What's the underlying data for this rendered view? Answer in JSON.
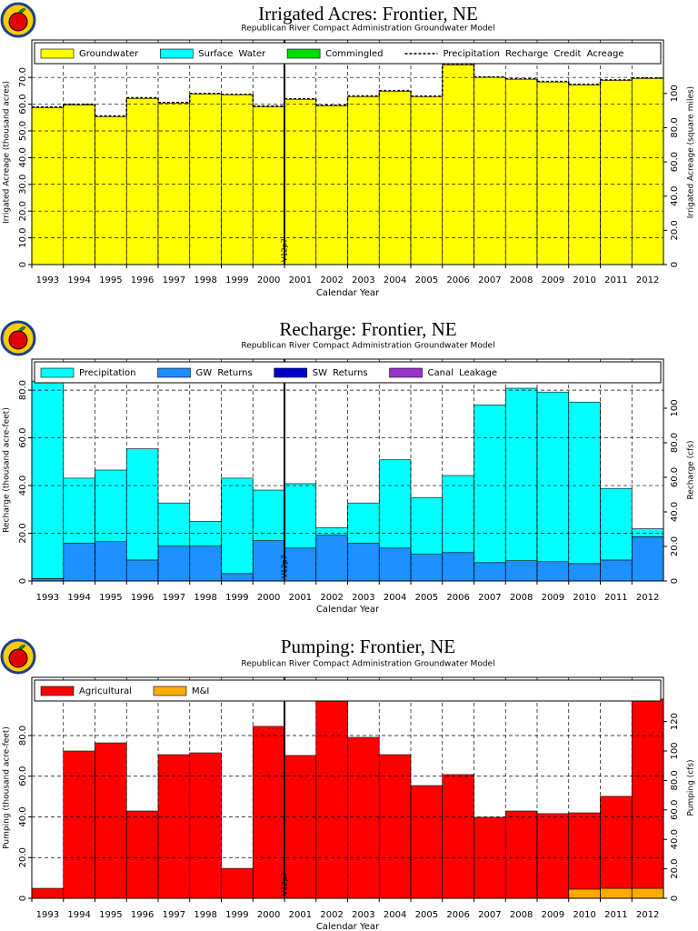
{
  "chart_data": [
    {
      "type": "bar",
      "stacked": true,
      "title": "Irrigated Acres: Frontier, NE",
      "subtitle": "Republican River Compact Administration Groundwater Model",
      "x_label": "Calendar Year",
      "y_label": "Irrigated Acreage (thousand acres)",
      "y2_label": "Irrigated Acreage (square miles)",
      "annotation": "V12p7",
      "categories": [
        "1993",
        "1994",
        "1995",
        "1996",
        "1997",
        "1998",
        "1999",
        "2000",
        "2001",
        "2002",
        "2003",
        "2004",
        "2005",
        "2006",
        "2007",
        "2008",
        "2009",
        "2010",
        "2011",
        "2012"
      ],
      "series": [
        {
          "name": "Groundwater",
          "color": "#ffff00",
          "values": [
            58.7,
            59.7,
            55.3,
            62.1,
            60.4,
            63.8,
            63.5,
            59.0,
            61.8,
            59.4,
            62.8,
            64.8,
            62.8,
            74.7,
            70.0,
            69.3,
            68.3,
            67.2,
            68.9,
            69.6
          ]
        },
        {
          "name": "Surface Water",
          "color": "#00ffff",
          "values": [
            0,
            0,
            0,
            0,
            0,
            0,
            0,
            0,
            0,
            0,
            0,
            0,
            0,
            0,
            0,
            0,
            0,
            0,
            0,
            0
          ]
        },
        {
          "name": "Commingled",
          "color": "#00dd00",
          "values": [
            0,
            0,
            0,
            0,
            0,
            0,
            0,
            0,
            0,
            0,
            0,
            0,
            0,
            0,
            0,
            0,
            0,
            0,
            0,
            0
          ]
        },
        {
          "name": "Precipitation Recharge Credit Acreage",
          "color": "#000000",
          "line_style": "dashed",
          "values": [
            58.9,
            60.0,
            55.6,
            62.4,
            60.6,
            64.0,
            63.7,
            59.3,
            62.0,
            59.6,
            63.1,
            65.1,
            63.0,
            75.0,
            70.2,
            69.5,
            68.5,
            67.4,
            69.1,
            69.8
          ]
        }
      ],
      "ylim": [
        0,
        84
      ],
      "yticks": [
        0,
        {
          "value": 10,
          "label": "10.0"
        },
        {
          "value": 20,
          "label": "20.0"
        },
        {
          "value": 30,
          "label": "30.0"
        },
        {
          "value": 40,
          "label": "40.0"
        },
        {
          "value": 50,
          "label": "50.0"
        },
        {
          "value": 60,
          "label": "60.0"
        },
        {
          "value": 70,
          "label": "70.0"
        }
      ],
      "y2lim": [
        0,
        131.25
      ],
      "y2ticks": [
        0,
        {
          "value": 20,
          "label": "20.0"
        },
        {
          "value": 40,
          "label": "40.0"
        },
        {
          "value": 60,
          "label": "60.0"
        },
        {
          "value": 80,
          "label": "80.0"
        },
        100
      ],
      "grid": true
    },
    {
      "type": "bar",
      "stacked": true,
      "title": "Recharge: Frontier, NE",
      "subtitle": "Republican River Compact Administration Groundwater Model",
      "x_label": "Calendar Year",
      "y_label": "Recharge (thousand acre-feet)",
      "y2_label": "Recharge (cfs)",
      "annotation": "V12p7",
      "categories": [
        "1993",
        "1994",
        "1995",
        "1996",
        "1997",
        "1998",
        "1999",
        "2000",
        "2001",
        "2002",
        "2003",
        "2004",
        "2005",
        "2006",
        "2007",
        "2008",
        "2009",
        "2010",
        "2011",
        "2012"
      ],
      "series": [
        {
          "name": "Precipitation",
          "color": "#00ffff",
          "values": [
            82.8,
            27.3,
            30.0,
            46.6,
            18.1,
            10.4,
            40.0,
            21.2,
            27.0,
            3.1,
            16.9,
            37.0,
            23.8,
            32.3,
            66.1,
            72.3,
            71.1,
            67.7,
            30.0,
            3.4
          ]
        },
        {
          "name": "GW Returns",
          "color": "#1e90ff",
          "values": [
            1.0,
            15.8,
            16.5,
            8.8,
            14.6,
            14.6,
            3.1,
            16.9,
            13.8,
            19.2,
            15.8,
            13.8,
            11.2,
            11.9,
            7.7,
            8.5,
            8.1,
            7.3,
            8.8,
            18.5
          ]
        },
        {
          "name": "SW Returns",
          "color": "#0000cc",
          "values": [
            0,
            0,
            0,
            0,
            0,
            0,
            0,
            0,
            0,
            0,
            0,
            0,
            0,
            0,
            0,
            0,
            0,
            0,
            0,
            0
          ]
        },
        {
          "name": "Canal Leakage",
          "color": "#9933cc",
          "values": [
            0,
            0,
            0,
            0,
            0,
            0,
            0,
            0,
            0,
            0,
            0,
            0,
            0,
            0,
            0,
            0,
            0,
            0,
            0,
            0
          ]
        }
      ],
      "ylim": [
        0,
        93
      ],
      "yticks": [
        0,
        {
          "value": 20,
          "label": "20.0"
        },
        {
          "value": 40,
          "label": "40.0"
        },
        {
          "value": 60,
          "label": "60.0"
        },
        {
          "value": 80,
          "label": "80.0"
        }
      ],
      "y2lim": [
        0,
        128.4
      ],
      "y2ticks": [
        0,
        {
          "value": 20,
          "label": "20.0"
        },
        {
          "value": 40,
          "label": "40.0"
        },
        {
          "value": 60,
          "label": "60.0"
        },
        {
          "value": 80,
          "label": "80.0"
        },
        100
      ],
      "grid": true
    },
    {
      "type": "bar",
      "stacked": true,
      "title": "Pumping: Frontier, NE",
      "subtitle": "Republican River Compact Administration Groundwater Model",
      "x_label": "Calendar Year",
      "y_label": "Pumping (thousand acre-feet)",
      "y2_label": "Pumping (cfs)",
      "annotation": "V12p7",
      "categories": [
        "1993",
        "1994",
        "1995",
        "1996",
        "1997",
        "1998",
        "1999",
        "2000",
        "2001",
        "2002",
        "2003",
        "2004",
        "2005",
        "2006",
        "2007",
        "2008",
        "2009",
        "2010",
        "2011",
        "2012"
      ],
      "series": [
        {
          "name": "Agricultural",
          "color": "#ff0000",
          "values": [
            4.9,
            72.4,
            76.4,
            42.9,
            70.6,
            71.5,
            14.7,
            84.5,
            70.2,
            97.4,
            79.1,
            70.6,
            55.4,
            60.8,
            39.8,
            42.9,
            41.6,
            37.5,
            45.2,
            93.0
          ]
        },
        {
          "name": "M&I",
          "color": "#ffaa00",
          "values": [
            0,
            0,
            0,
            0,
            0,
            0,
            0,
            0,
            0,
            0,
            0,
            0,
            0,
            0,
            0,
            0,
            0,
            4.5,
            4.9,
            4.9
          ]
        }
      ],
      "ylim": [
        0,
        108.6
      ],
      "yticks": [
        0,
        {
          "value": 20,
          "label": "20.0"
        },
        {
          "value": 40,
          "label": "40.0"
        },
        {
          "value": 60,
          "label": "60.0"
        },
        {
          "value": 80,
          "label": "80.0"
        }
      ],
      "y2lim": [
        0,
        150
      ],
      "y2ticks": [
        0,
        {
          "value": 20,
          "label": "20.0"
        },
        {
          "value": 40,
          "label": "40.0"
        },
        {
          "value": 60,
          "label": "60.0"
        },
        {
          "value": 80,
          "label": "80.0"
        },
        100,
        120
      ],
      "grid": true
    }
  ]
}
